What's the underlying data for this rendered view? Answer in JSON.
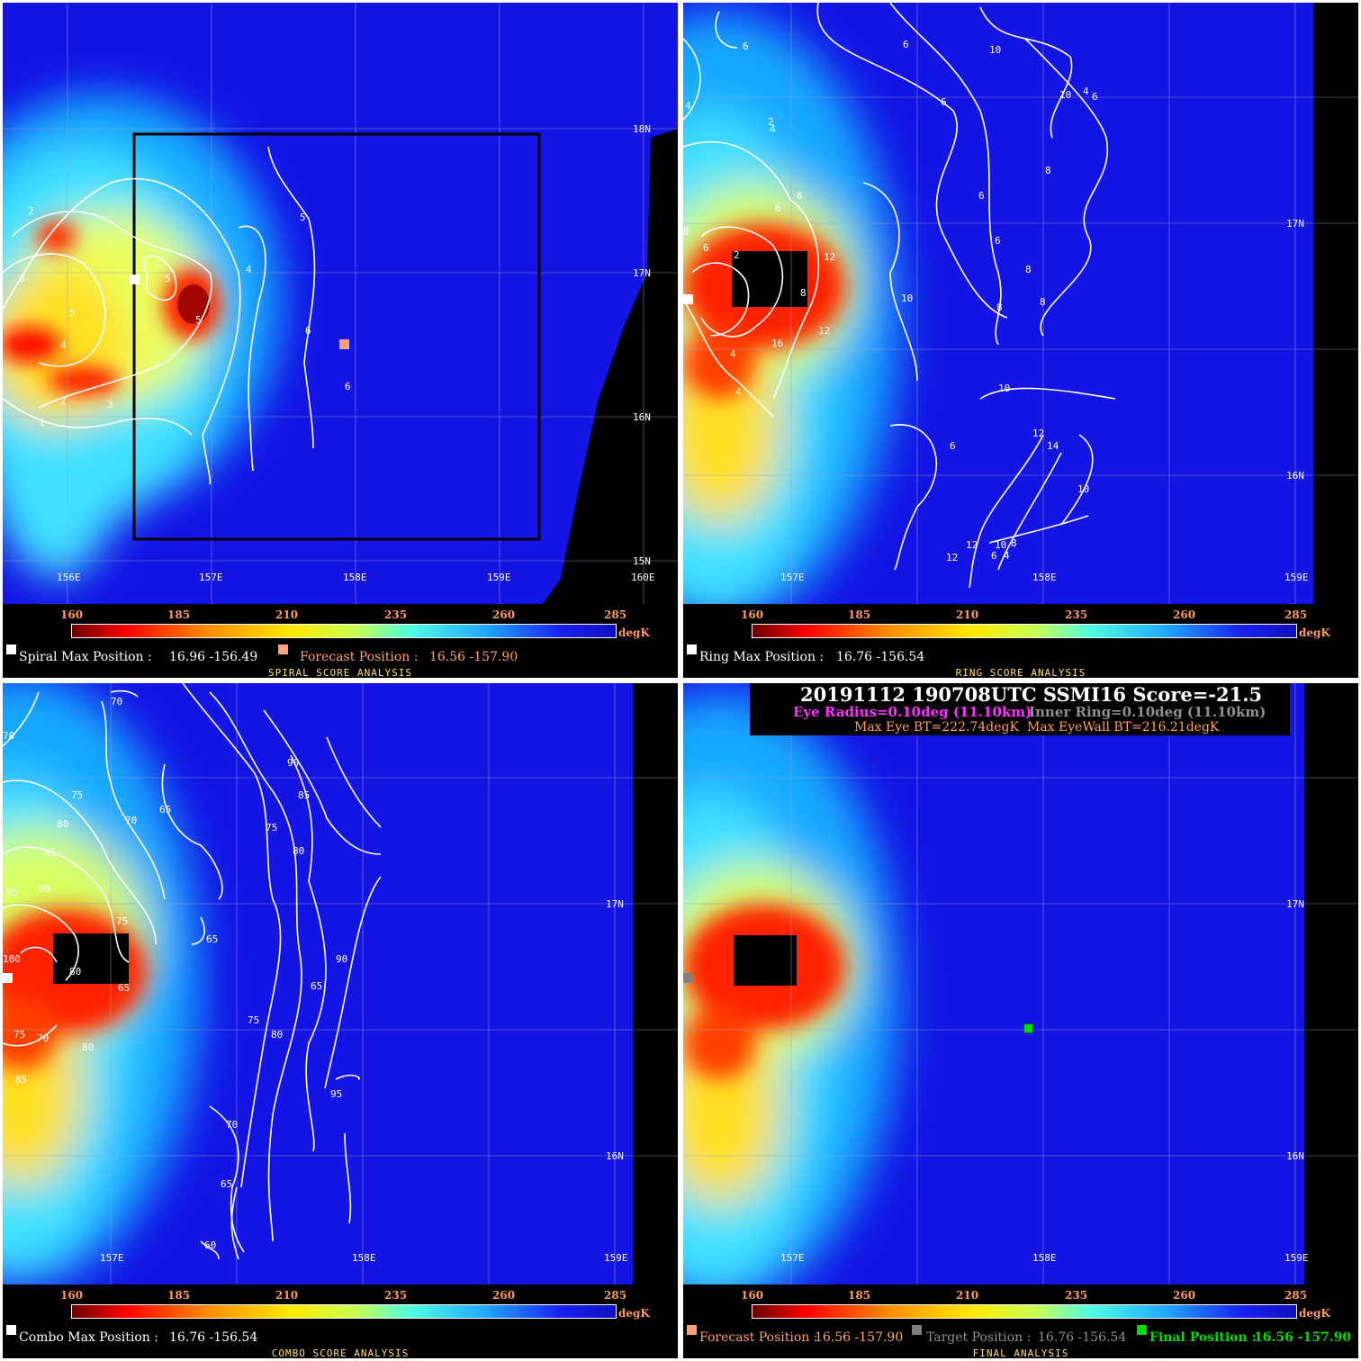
{
  "colorbar": {
    "ticks": [
      "160",
      "185",
      "210",
      "235",
      "260",
      "285"
    ],
    "unit": "degK"
  },
  "panels": {
    "spiral": {
      "title": "SPIRAL SCORE ANALYSIS",
      "max_label": "Spiral Max Position :",
      "max_value": "16.96 -156.49",
      "forecast_label": "Forecast Position :",
      "forecast_value": "16.56 -157.90",
      "lat_labels": [
        "18N",
        "17N",
        "16N",
        "15N"
      ],
      "lon_labels": [
        "156E",
        "157E",
        "158E",
        "159E",
        "160E"
      ],
      "contour_labels": [
        "2",
        "3",
        "5",
        "4",
        "2",
        "3",
        "1",
        "5",
        "4",
        "5",
        "5",
        "6",
        "6"
      ]
    },
    "ring": {
      "title": "RING SCORE ANALYSIS",
      "max_label": "Ring Max Position :",
      "max_value": "16.76 -156.54",
      "lat_labels": [
        "17N",
        "16N"
      ],
      "lon_labels": [
        "157E",
        "158E",
        "159E"
      ],
      "contour_labels": [
        "6",
        "4",
        "6",
        "10",
        "6",
        "10",
        "4",
        "6",
        "4",
        "2",
        "6",
        "6",
        "8",
        "6",
        "6",
        "8",
        "8",
        "10",
        "8",
        "8",
        "6",
        "12",
        "12",
        "2",
        "8",
        "16",
        "4",
        "4",
        "10",
        "12",
        "14",
        "10",
        "6",
        "12",
        "12",
        "10",
        "6",
        "4",
        "8"
      ]
    },
    "combo": {
      "title": "COMBO SCORE ANALYSIS",
      "max_label": "Combo Max Position :",
      "max_value": "16.76 -156.54",
      "lat_labels": [
        "17N",
        "16N"
      ],
      "lon_labels": [
        "157E",
        "158E",
        "159E"
      ],
      "contour_labels": [
        "70",
        "70",
        "75",
        "80",
        "85",
        "95",
        "90",
        "70",
        "65",
        "75",
        "85",
        "90",
        "75",
        "80",
        "65",
        "90",
        "65",
        "80",
        "75",
        "80",
        "100",
        "65",
        "75",
        "70",
        "80",
        "85",
        "95",
        "70",
        "65",
        "60",
        "90",
        "85"
      ]
    },
    "final": {
      "title": "FINAL ANALYSIS",
      "header_line1": "20191112  190708UTC     SSMI16    Score=-21.5",
      "eye_radius": "Eye Radius=0.10deg (11.10km)",
      "inner_ring": "Inner Ring=0.10deg (11.10km)",
      "max_eye_bt": "Max Eye BT=222.74degK",
      "max_eyewall_bt": "Max EyeWall BT=216.21degK",
      "forecast_label": "Forecast Position :",
      "forecast_value": "16.56 -157.90",
      "target_label": "Target Position :",
      "target_value": "16.76 -156.54",
      "final_label": "Final Position :",
      "final_value": "16.56 -157.90",
      "lat_labels": [
        "17N",
        "16N"
      ],
      "lon_labels": [
        "157E",
        "158E",
        "159E"
      ]
    }
  },
  "colors": {
    "forecast_marker": "#ffa07a",
    "target_marker": "#808080",
    "final_marker": "#00e000",
    "eye_radius_text": "#ff30ff",
    "inner_ring_text": "#909090",
    "bt_text": "#ffa060",
    "title_text": "#ffe060"
  }
}
